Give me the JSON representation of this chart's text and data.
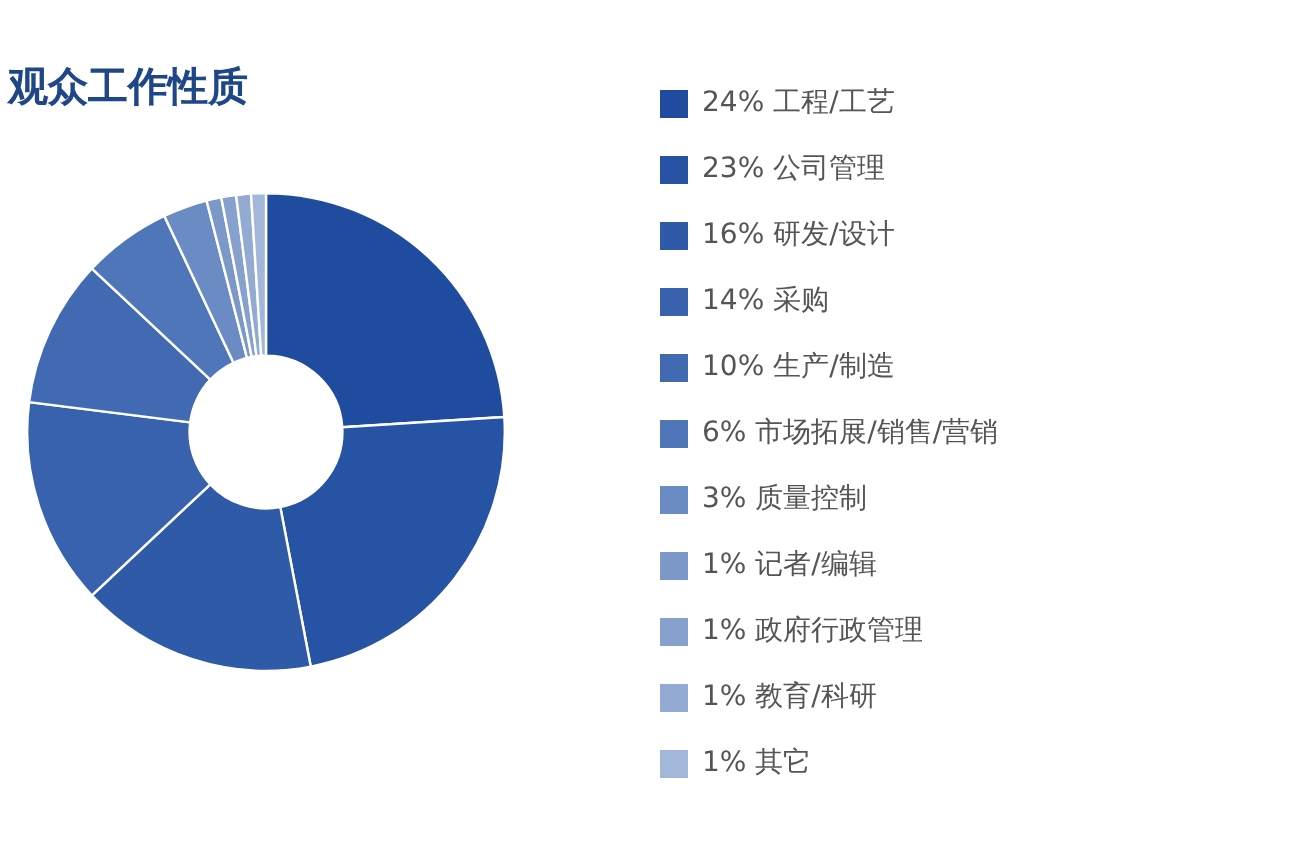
{
  "chart_data": {
    "type": "donut",
    "title": "观众工作性质",
    "categories": [
      "工程/工艺",
      "公司管理",
      "研发/设计",
      "采购",
      "生产/制造",
      "市场拓展/销售/营销",
      "质量控制",
      "记者/编辑",
      "政府行政管理",
      "教育/科研",
      "其它"
    ],
    "values": [
      24,
      23,
      16,
      14,
      10,
      6,
      3,
      1,
      1,
      1,
      1
    ],
    "value_labels": [
      "24%",
      "23%",
      "16%",
      "14%",
      "10%",
      "6%",
      "3%",
      "1%",
      "1%",
      "1%",
      "1%"
    ],
    "colors": [
      "#1f4c9e",
      "#2653a3",
      "#2f5aa8",
      "#3862ad",
      "#416ab2",
      "#4f76b8",
      "#6a8bc3",
      "#7b98c9",
      "#87a1ce",
      "#93abd3",
      "#a3b7da"
    ],
    "legend": "right"
  }
}
